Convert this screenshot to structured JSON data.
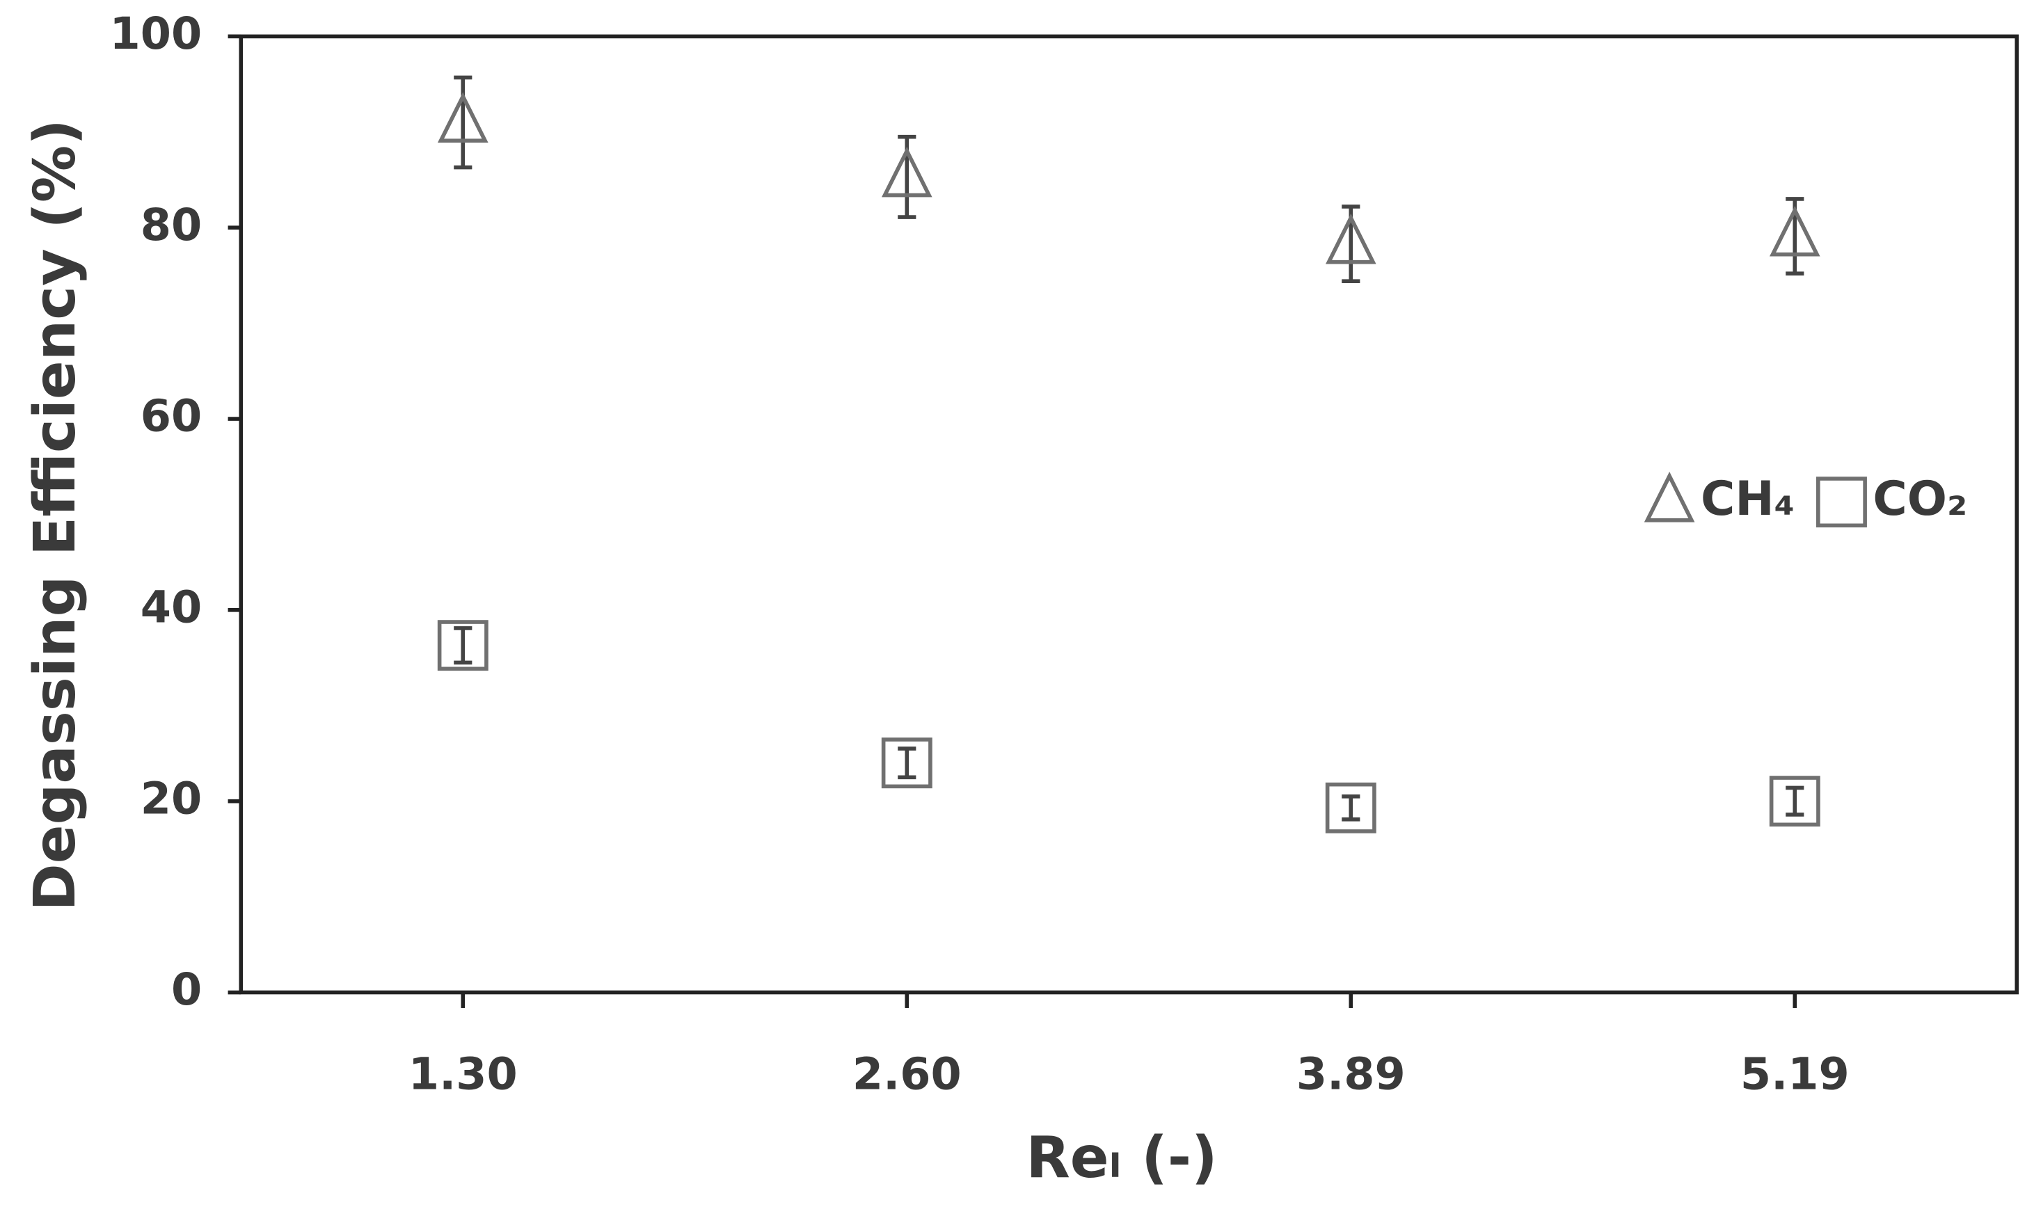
{
  "chart_data": {
    "type": "scatter",
    "x_label": "Reₗ (-)",
    "y_label": "Degassing Efficiency (%)",
    "categories": [
      "1.30",
      "2.60",
      "3.89",
      "5.19"
    ],
    "series": [
      {
        "name": "CH₄",
        "marker": "triangle",
        "color": "#707070",
        "values": [
          91,
          85.3,
          78.3,
          79.1
        ],
        "errors": [
          4.7,
          4.2,
          3.9,
          3.9
        ]
      },
      {
        "name": "CO₂",
        "marker": "square",
        "color": "#707070",
        "values": [
          36.3,
          24,
          19.3,
          20
        ],
        "errors": [
          1.8,
          1.5,
          1.2,
          1.4
        ]
      }
    ],
    "ylim": [
      0,
      100
    ],
    "yticks": [
      0,
      20,
      40,
      60,
      80,
      100
    ],
    "grid": false,
    "legend": "right"
  }
}
